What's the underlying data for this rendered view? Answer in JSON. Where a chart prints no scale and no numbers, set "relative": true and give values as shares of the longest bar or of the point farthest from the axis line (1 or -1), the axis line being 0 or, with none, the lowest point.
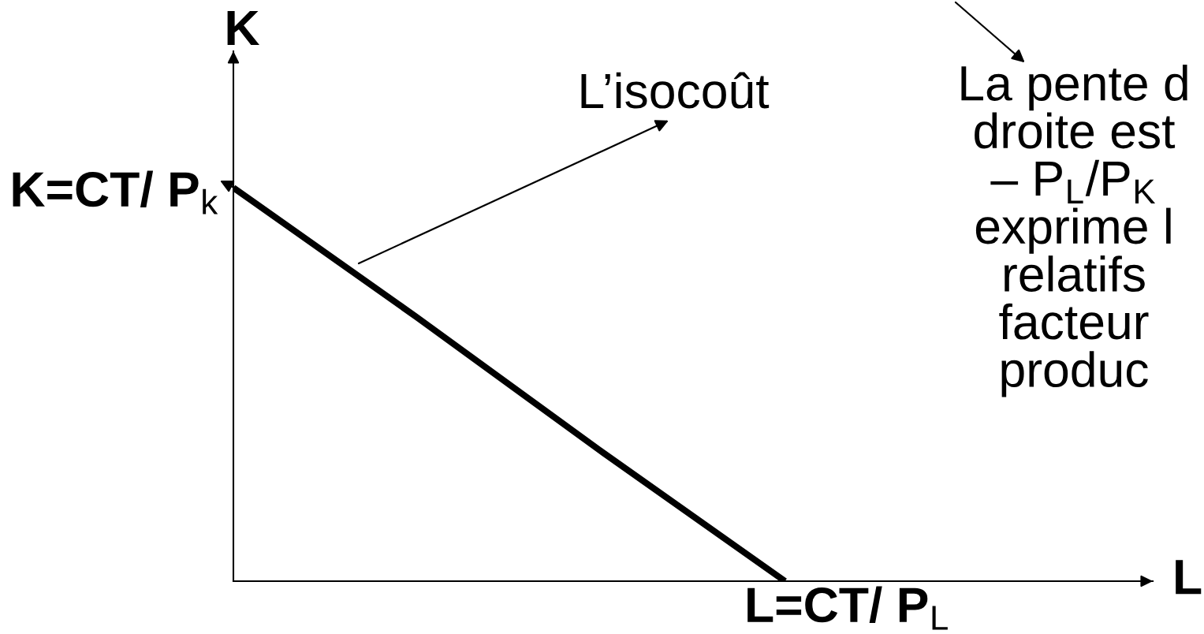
{
  "chart_data": {
    "type": "line",
    "relative": true,
    "xlabel": "L",
    "ylabel": "K",
    "categories": [
      null,
      null,
      null,
      null,
      null,
      null
    ],
    "values": [
      1,
      0.67,
      0.33,
      0,
      null,
      null
    ],
    "color": "#000000",
    "annotations": [
      "L’isocoût",
      "K=CT/ P$_{k}$",
      "L=CT/ P$_{L}$",
      "La pente d\ndroite est\n– P$_{L}$/P$_{K}$\nexprime l\nrelatifs\nfacteur\nproduc"
    ]
  }
}
